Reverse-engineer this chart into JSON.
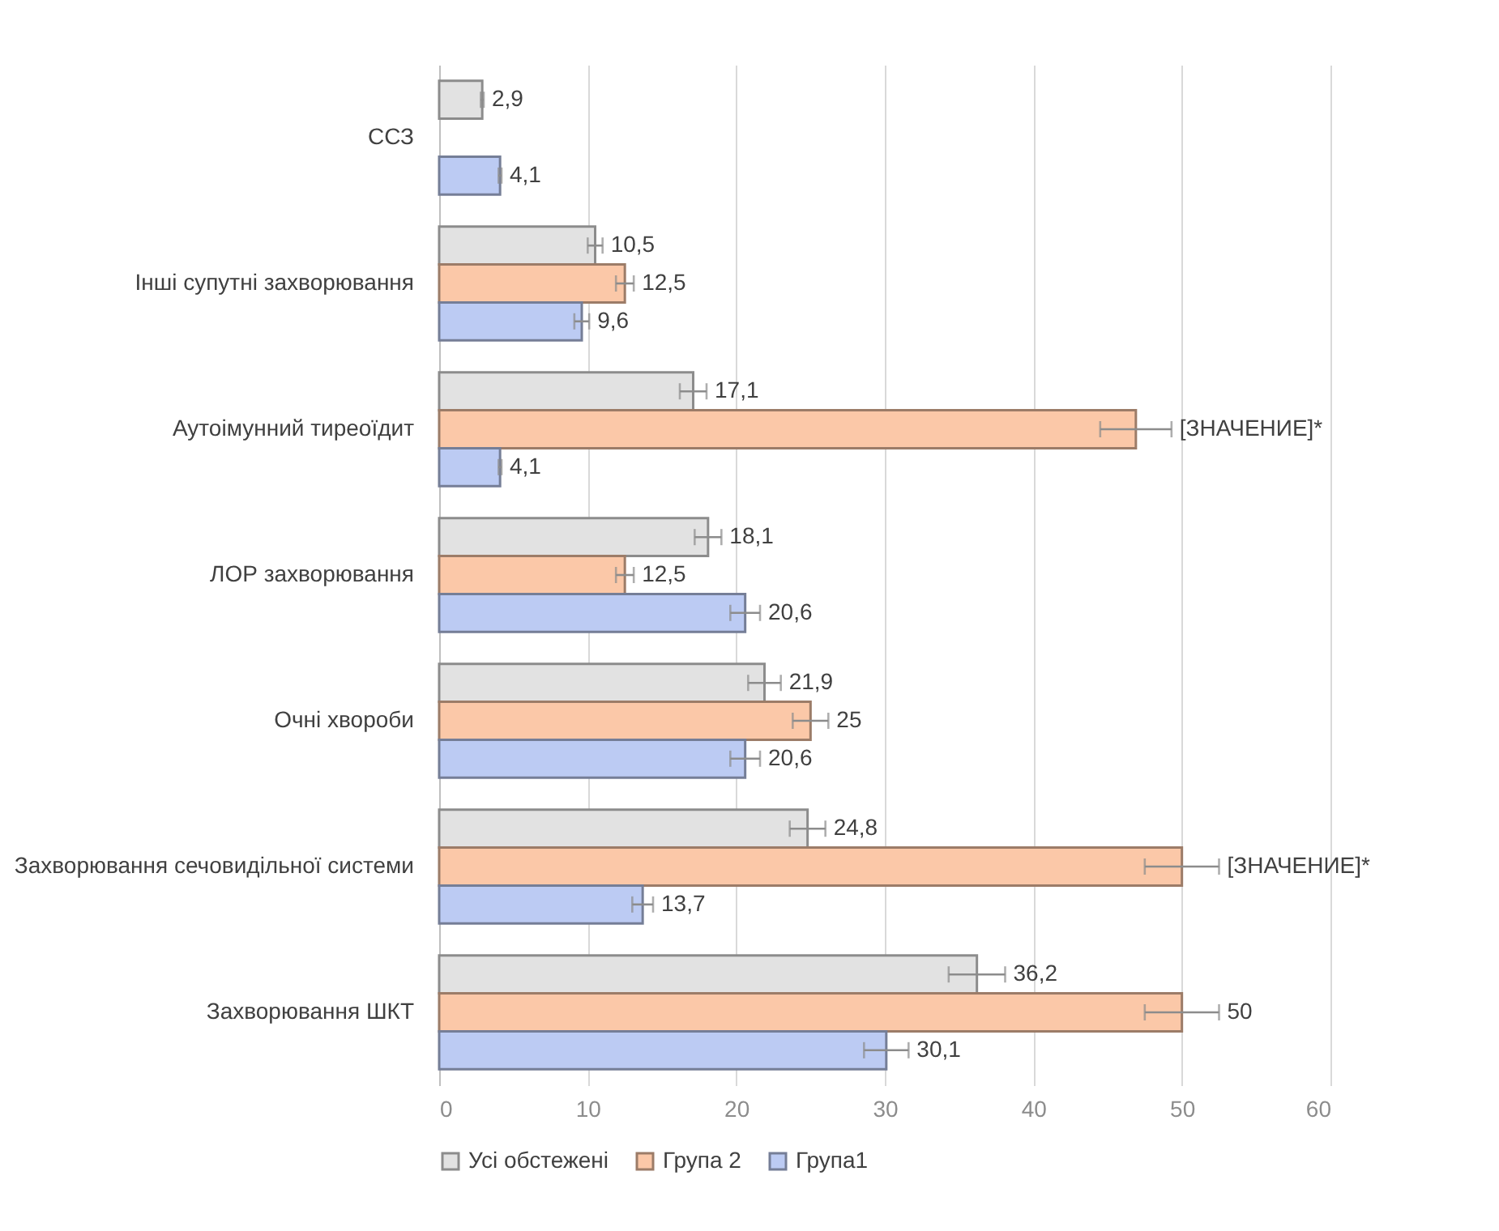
{
  "chart_data": {
    "type": "bar",
    "orientation": "horizontal",
    "categories": [
      "ССЗ",
      "Інші супутні захворювання",
      "Аутоімунний тиреоїдит",
      "ЛОР захворювання",
      "Очні хвороби",
      "Захворювання сечовидільної системи",
      "Захворювання ШКТ"
    ],
    "series": [
      {
        "name": "Усі обстежені",
        "color": "#e2e2e2",
        "values": [
          2.9,
          10.5,
          17.1,
          18.1,
          21.9,
          24.8,
          36.2
        ],
        "errors": [
          0.1,
          0.5,
          0.9,
          0.9,
          1.1,
          1.2,
          1.9
        ],
        "value_labels": [
          "2,9",
          "10,5",
          "17,1",
          "18,1",
          "21,9",
          "24,8",
          "36,2"
        ]
      },
      {
        "name": "Група 2",
        "color": "#fbc8a8",
        "values": [
          null,
          12.5,
          46.9,
          12.5,
          25,
          50,
          50
        ],
        "errors": [
          null,
          0.6,
          2.4,
          0.6,
          1.2,
          2.5,
          2.5
        ],
        "value_labels": [
          null,
          "12,5",
          "[ЗНАЧЕНИЕ]*",
          "12,5",
          "25",
          "[ЗНАЧЕНИЕ]*",
          "50"
        ]
      },
      {
        "name": "Група1",
        "color": "#bccbf3",
        "values": [
          4.1,
          9.6,
          4.1,
          20.6,
          20.6,
          13.7,
          30.1
        ],
        "errors": [
          0.1,
          0.5,
          0.1,
          1.0,
          1.0,
          0.7,
          1.5
        ],
        "value_labels": [
          "4,1",
          "9,6",
          "4,1",
          "20,6",
          "20,6",
          "13,7",
          "30,1"
        ]
      }
    ],
    "xlim": [
      0,
      60
    ],
    "xticks": [
      0,
      10,
      20,
      30,
      40,
      50,
      60
    ],
    "grid": "x",
    "legend": "bottom"
  }
}
